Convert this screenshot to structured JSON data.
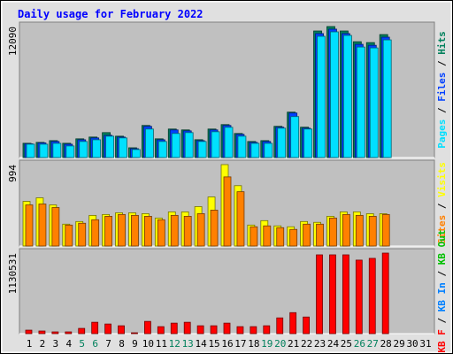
{
  "chart_data": [
    {
      "type": "bar",
      "title": "Daily usage for February 2022",
      "ylim": [
        0,
        12090
      ],
      "yticks": [
        12090
      ],
      "legend_separator": " / ",
      "series": [
        {
          "name": "Hits",
          "color": "#00805c",
          "values": [
            1316,
            1400,
            1560,
            1316,
            1727,
            1890,
            2300,
            1970,
            900,
            2960,
            1727,
            2630,
            2550,
            1645,
            2630,
            3040,
            2220,
            1480,
            1560,
            2880,
            4190,
            2800,
            11680,
            12090,
            11680,
            10690,
            10610,
            11350,
            null,
            null,
            null
          ]
        },
        {
          "name": "Files",
          "color": "#0040ff",
          "values": [
            1270,
            1350,
            1480,
            1230,
            1640,
            1810,
            2050,
            1890,
            820,
            2880,
            1640,
            2550,
            2460,
            1560,
            2550,
            2960,
            2140,
            1400,
            1480,
            2800,
            4110,
            2710,
            11440,
            11850,
            11440,
            10450,
            10360,
            11110,
            null,
            null,
            null
          ]
        },
        {
          "name": "Pages",
          "color": "#00e0ff",
          "values": [
            1230,
            1230,
            1310,
            1070,
            1480,
            1640,
            1970,
            1810,
            740,
            2630,
            1480,
            2220,
            2300,
            1480,
            2380,
            2790,
            1970,
            1310,
            1310,
            2710,
            3780,
            2630,
            11190,
            11600,
            11270,
            10200,
            10120,
            10860,
            null,
            null,
            null
          ]
        }
      ]
    },
    {
      "type": "bar",
      "ylim": [
        0,
        994
      ],
      "yticks": [
        994
      ],
      "legend_separator": " / ",
      "series": [
        {
          "name": "Visits",
          "color": "#ffff00",
          "values": [
            545,
            588,
            502,
            267,
            299,
            374,
            385,
            406,
            406,
            395,
            342,
            417,
            417,
            481,
            599,
            994,
            737,
            256,
            310,
            246,
            235,
            299,
            289,
            363,
            417,
            417,
            395,
            395,
            null,
            null,
            null
          ]
        },
        {
          "name": "Sites",
          "color": "#ff8000",
          "values": [
            502,
            513,
            470,
            256,
            278,
            321,
            363,
            385,
            374,
            363,
            321,
            374,
            363,
            395,
            438,
            844,
            663,
            235,
            246,
            224,
            203,
            267,
            267,
            342,
            385,
            374,
            363,
            385,
            null,
            null,
            null
          ]
        }
      ]
    },
    {
      "type": "bar",
      "ylim": [
        0,
        1130531
      ],
      "yticks": [
        1130531
      ],
      "legend_separator": " / ",
      "categories": [
        "1",
        "2",
        "3",
        "4",
        "5",
        "6",
        "7",
        "8",
        "9",
        "10",
        "11",
        "12",
        "13",
        "14",
        "15",
        "16",
        "17",
        "18",
        "19",
        "20",
        "21",
        "22",
        "23",
        "24",
        "25",
        "26",
        "27",
        "28",
        "29",
        "30",
        "31"
      ],
      "category_colors": [
        "#000000",
        "#000000",
        "#000000",
        "#000000",
        "#00805c",
        "#00805c",
        "#000000",
        "#000000",
        "#000000",
        "#000000",
        "#000000",
        "#00805c",
        "#00805c",
        "#000000",
        "#000000",
        "#000000",
        "#000000",
        "#000000",
        "#00805c",
        "#00805c",
        "#000000",
        "#000000",
        "#000000",
        "#000000",
        "#000000",
        "#00805c",
        "#00805c",
        "#000000",
        "#000000",
        "#000000",
        "#000000"
      ],
      "series": [
        {
          "name": "KB F",
          "color": "#ff0000",
          "values": [
            49154,
            36866,
            24577,
            24577,
            73730,
            159750,
            135172,
            110596,
            12289,
            172038,
            98308,
            147460,
            159750,
            110596,
            110596,
            147460,
            98308,
            98308,
            110596,
            221191,
            294921,
            233480,
            1105956,
            1105956,
            1105956,
            1032224,
            1056800,
            1130531,
            null,
            null,
            null
          ]
        }
      ],
      "legend_only": [
        {
          "name": "KB In",
          "color": "#0080ff"
        },
        {
          "name": "KB Out",
          "color": "#00c000"
        }
      ]
    }
  ]
}
